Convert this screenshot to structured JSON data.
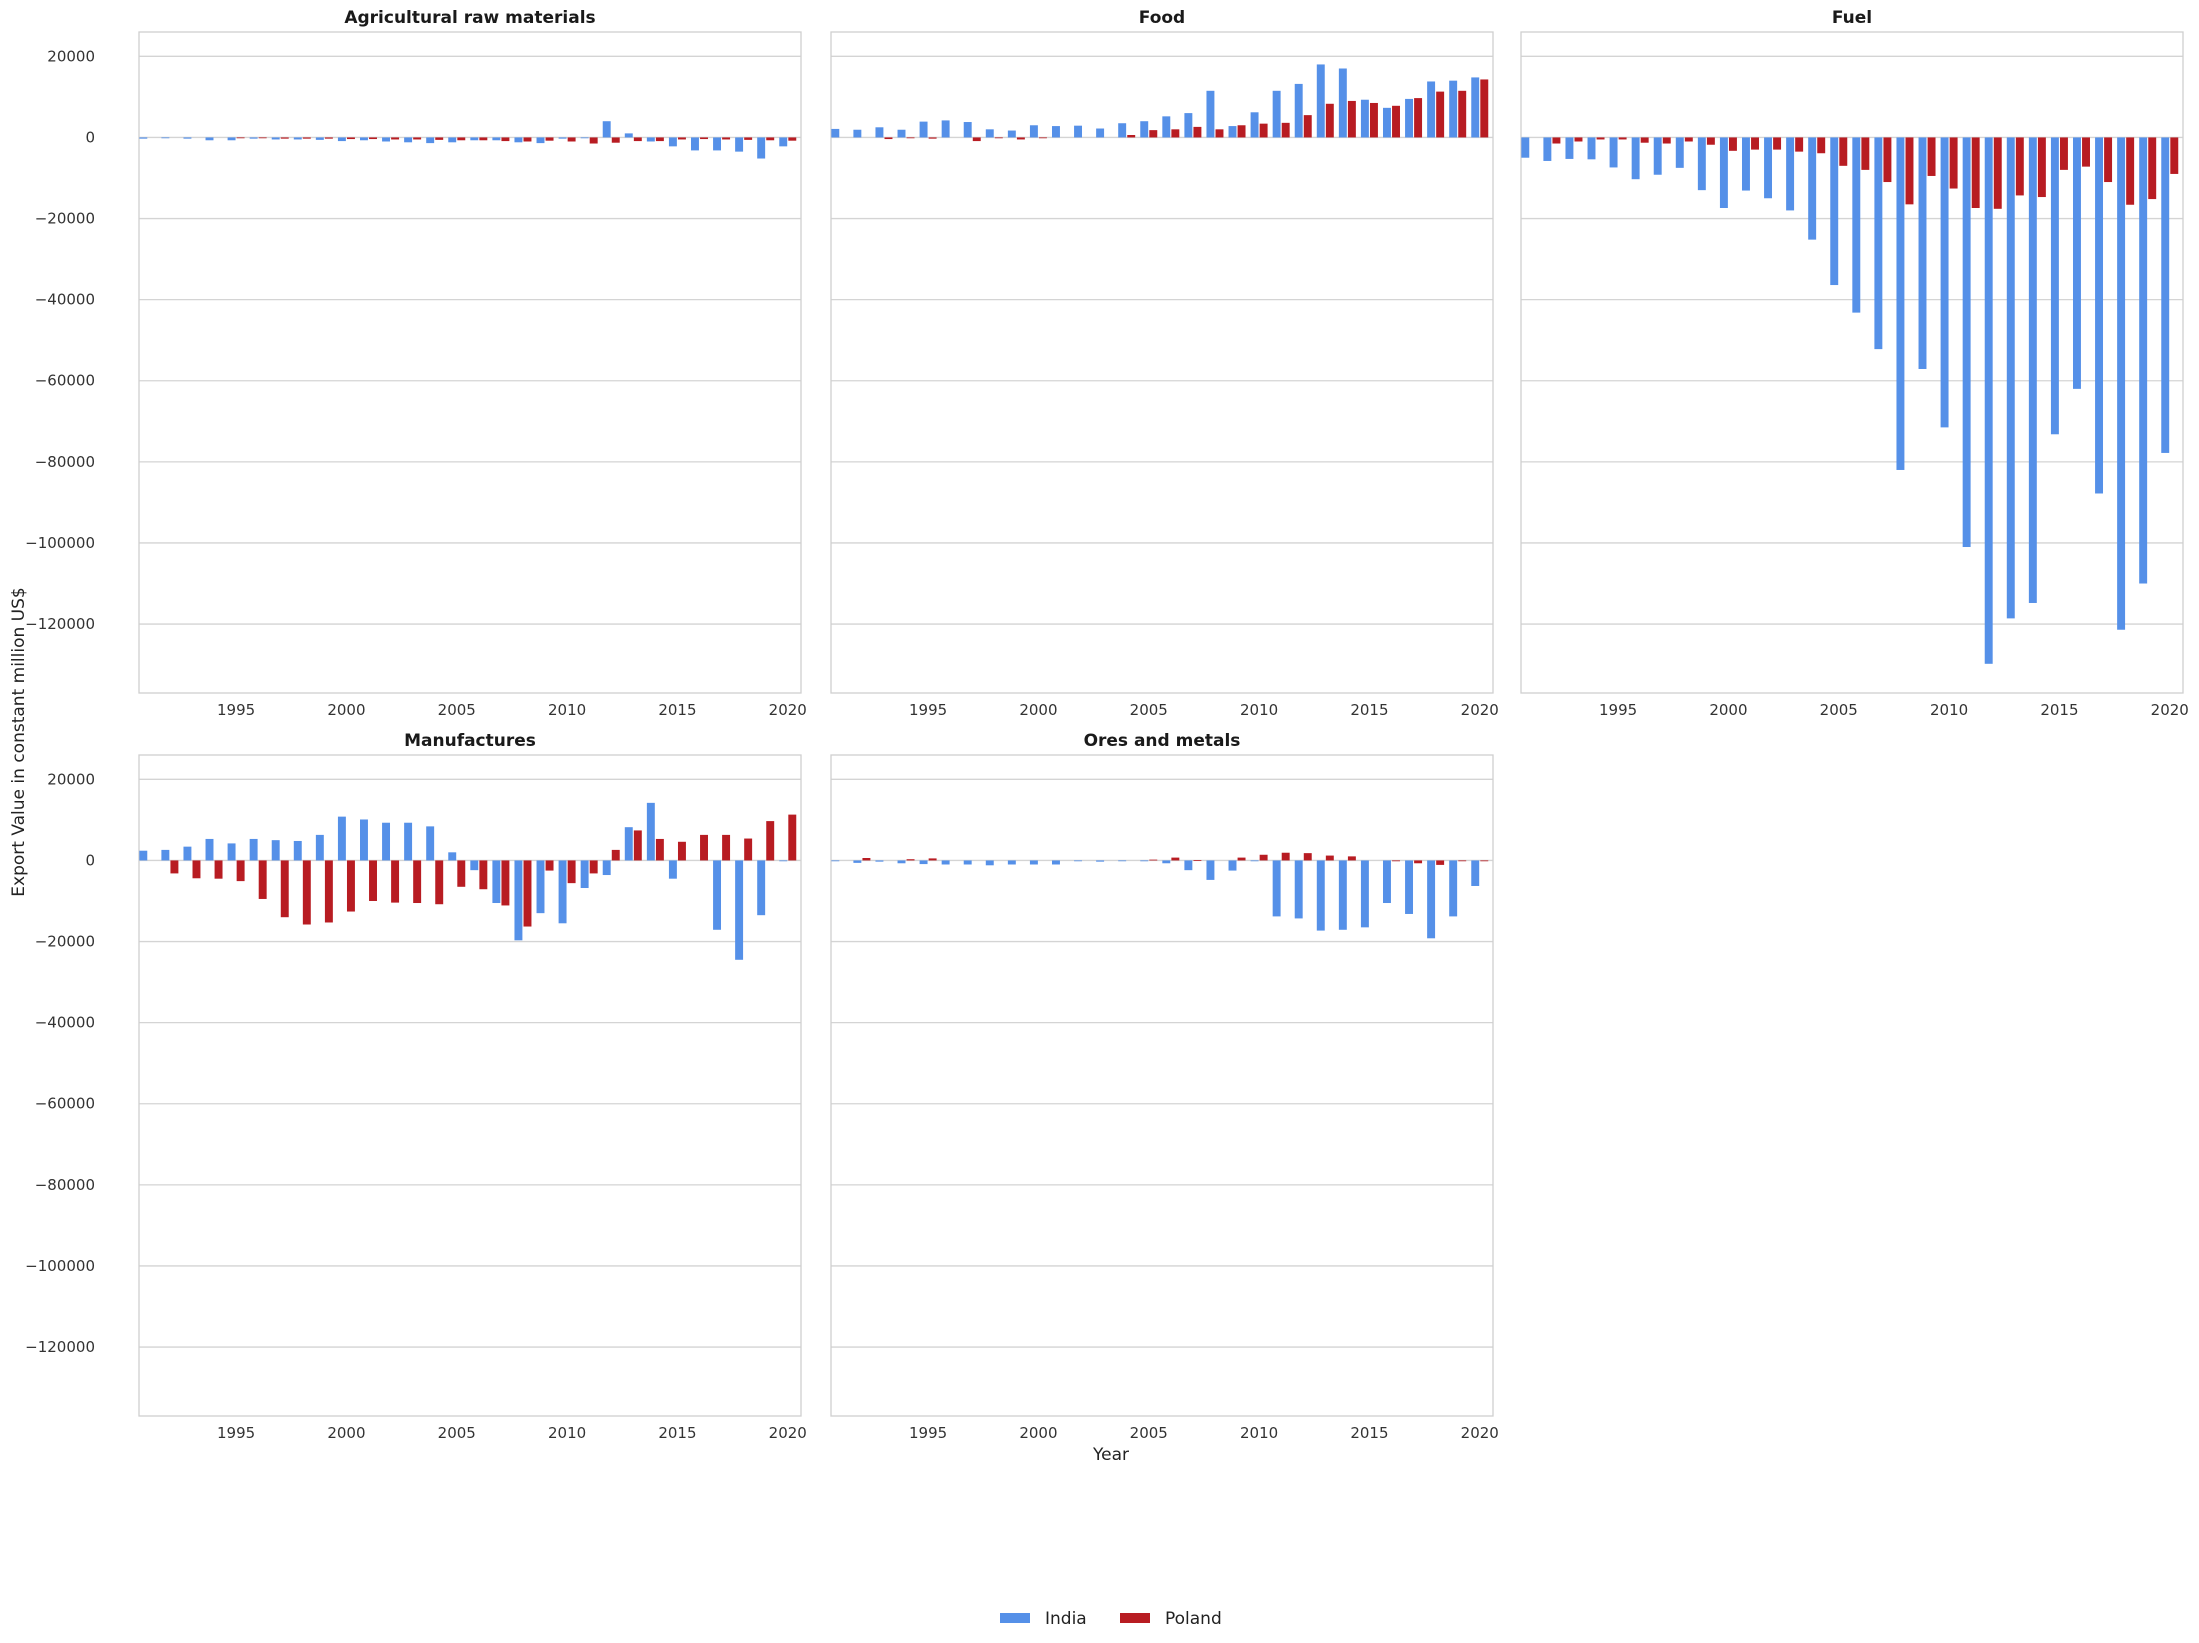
{
  "chart_data": {
    "type": "bar",
    "ylabel": "Export Value in constant million US$",
    "xlabel": "Year",
    "ylim": [
      -137000,
      26000
    ],
    "xlim": [
      1990.6,
      2020.6
    ],
    "yticks": [
      20000,
      0,
      -20000,
      -40000,
      -60000,
      -80000,
      -100000,
      -120000
    ],
    "xticks": [
      1995,
      2000,
      2005,
      2010,
      2015,
      2020
    ],
    "grid": "horizontal",
    "legend_position": "bottom-center",
    "colors": {
      "India": "#5590e8",
      "Poland": "#b81c22"
    },
    "legend": [
      "India",
      "Poland"
    ],
    "years": [
      1991,
      1992,
      1993,
      1994,
      1995,
      1996,
      1997,
      1998,
      1999,
      2000,
      2001,
      2002,
      2003,
      2004,
      2005,
      2006,
      2007,
      2008,
      2009,
      2010,
      2011,
      2012,
      2013,
      2014,
      2015,
      2016,
      2017,
      2018,
      2019,
      2020
    ],
    "panels": [
      {
        "title": "Agricultural raw materials",
        "series": [
          {
            "name": "India",
            "values": [
              -300,
              -200,
              -300,
              -700,
              -700,
              -300,
              -500,
              -500,
              -600,
              -900,
              -700,
              -1000,
              -1200,
              -1400,
              -1200,
              -700,
              -700,
              -1200,
              -1400,
              -300,
              -200,
              4000,
              1000,
              -1000,
              -2200,
              -3200,
              -3200,
              -3500,
              -5200,
              -2200
            ]
          },
          {
            "name": "Poland",
            "values": [
              0,
              0,
              0,
              0,
              -200,
              -200,
              -300,
              -300,
              -300,
              -400,
              -400,
              -500,
              -500,
              -600,
              -700,
              -700,
              -900,
              -1000,
              -800,
              -1000,
              -1500,
              -1300,
              -900,
              -900,
              -500,
              -400,
              -500,
              -600,
              -700,
              -800
            ]
          }
        ]
      },
      {
        "title": "Food",
        "series": [
          {
            "name": "India",
            "values": [
              2100,
              1900,
              2500,
              1900,
              3900,
              4200,
              3800,
              2000,
              1700,
              3000,
              2800,
              2900,
              2200,
              3500,
              4000,
              5200,
              6000,
              11500,
              2800,
              6200,
              11500,
              13200,
              18000,
              17000,
              9300,
              7300,
              9500,
              13800,
              14000,
              14800
            ]
          },
          {
            "name": "Poland",
            "values": [
              0,
              0,
              -400,
              -200,
              -300,
              0,
              -900,
              -200,
              -500,
              -200,
              0,
              0,
              0,
              600,
              1800,
              2000,
              2600,
              2000,
              3000,
              3400,
              3600,
              5500,
              8300,
              9000,
              8500,
              7800,
              9700,
              11300,
              11500,
              14300
            ]
          }
        ]
      },
      {
        "title": "Fuel",
        "series": [
          {
            "name": "India",
            "values": [
              -5000,
              -5800,
              -5300,
              -5400,
              -7400,
              -10300,
              -9200,
              -7500,
              -13000,
              -17400,
              -13100,
              -15000,
              -18000,
              -25200,
              -36400,
              -43200,
              -52200,
              -82000,
              -57100,
              -71500,
              -101000,
              -129800,
              -118600,
              -114800,
              -73200,
              -62000,
              -87800,
              -121400,
              -110000,
              -77800
            ]
          },
          {
            "name": "Poland",
            "values": [
              0,
              -1500,
              -1000,
              -500,
              -500,
              -1300,
              -1500,
              -1000,
              -1800,
              -3300,
              -3000,
              -3000,
              -3500,
              -3900,
              -7000,
              -8000,
              -11000,
              -16500,
              -9500,
              -12600,
              -17400,
              -17600,
              -14300,
              -14700,
              -8000,
              -7200,
              -11000,
              -16600,
              -15200,
              -9000
            ]
          }
        ]
      },
      {
        "title": "Manufactures",
        "series": [
          {
            "name": "India",
            "values": [
              2400,
              2600,
              3400,
              5300,
              4200,
              5300,
              5000,
              4800,
              6300,
              10800,
              10100,
              9300,
              9300,
              8400,
              2000,
              -2400,
              -10500,
              -19700,
              -13000,
              -15500,
              -6800,
              -3600,
              8200,
              14200,
              -4500,
              0,
              -17100,
              -24500,
              -13500,
              -200
            ]
          },
          {
            "name": "Poland",
            "values": [
              0,
              -3200,
              -4400,
              -4500,
              -5100,
              -9500,
              -14000,
              -15800,
              -15300,
              -12600,
              -10000,
              -10400,
              -10500,
              -10800,
              -6500,
              -7100,
              -11100,
              -16300,
              -2500,
              -5600,
              -3200,
              2600,
              7400,
              5300,
              4600,
              6300,
              6300,
              5400,
              9700,
              11300
            ]
          }
        ]
      },
      {
        "title": "Ores and metals",
        "series": [
          {
            "name": "India",
            "values": [
              -200,
              -600,
              -300,
              -700,
              -900,
              -1000,
              -1000,
              -1200,
              -1000,
              -1000,
              -1000,
              -200,
              -300,
              -100,
              -200,
              -700,
              -2400,
              -4800,
              -2500,
              -100,
              -13800,
              -14300,
              -17300,
              -17100,
              -16500,
              -10500,
              -13200,
              -19200,
              -13800,
              -6300
            ]
          },
          {
            "name": "Poland",
            "values": [
              0,
              600,
              0,
              300,
              500,
              0,
              0,
              0,
              0,
              0,
              0,
              0,
              0,
              0,
              200,
              700,
              100,
              0,
              700,
              1400,
              1900,
              1800,
              1200,
              1000,
              0,
              -200,
              -700,
              -1100,
              -100,
              -200
            ]
          }
        ]
      }
    ]
  }
}
